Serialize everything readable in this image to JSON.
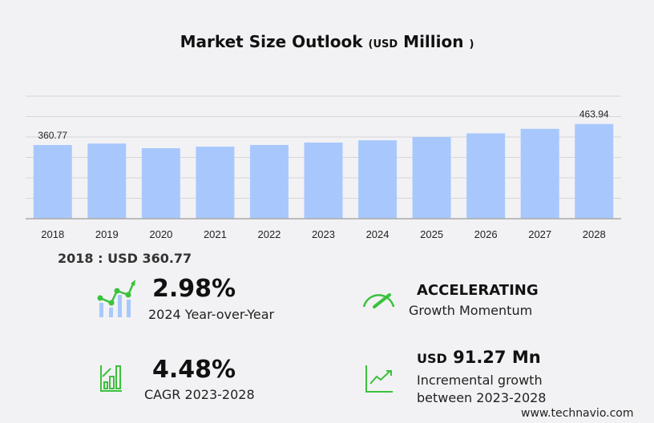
{
  "chart_data": {
    "type": "bar",
    "title": "Market Size Outlook",
    "unit_prefix": "USD",
    "unit": "Million",
    "categories": [
      "2018",
      "2019",
      "2020",
      "2021",
      "2022",
      "2023",
      "2024",
      "2025",
      "2026",
      "2027",
      "2028"
    ],
    "values": [
      360.77,
      368,
      345,
      353,
      361,
      372.67,
      383.8,
      400,
      418,
      440,
      463.94
    ],
    "data_labels": {
      "0": "360.77",
      "10": "463.94"
    },
    "ylim": [
      0,
      600
    ],
    "grid": true,
    "color": "#a8c8fd"
  },
  "summary": {
    "base": "2018 : USD  360.77",
    "yoy_value": "2.98%",
    "yoy_label": "2024 Year-over-Year",
    "momentum_value": "ACCELERATING",
    "momentum_label": "Growth Momentum",
    "cagr_value": "4.48%",
    "cagr_label": "CAGR 2023-2028",
    "incr_prefix": "USD",
    "incr_value": "91.27 Mn",
    "incr_label1": "Incremental growth",
    "incr_label2": "between 2023-2028"
  },
  "footer": "www.technavio.com"
}
